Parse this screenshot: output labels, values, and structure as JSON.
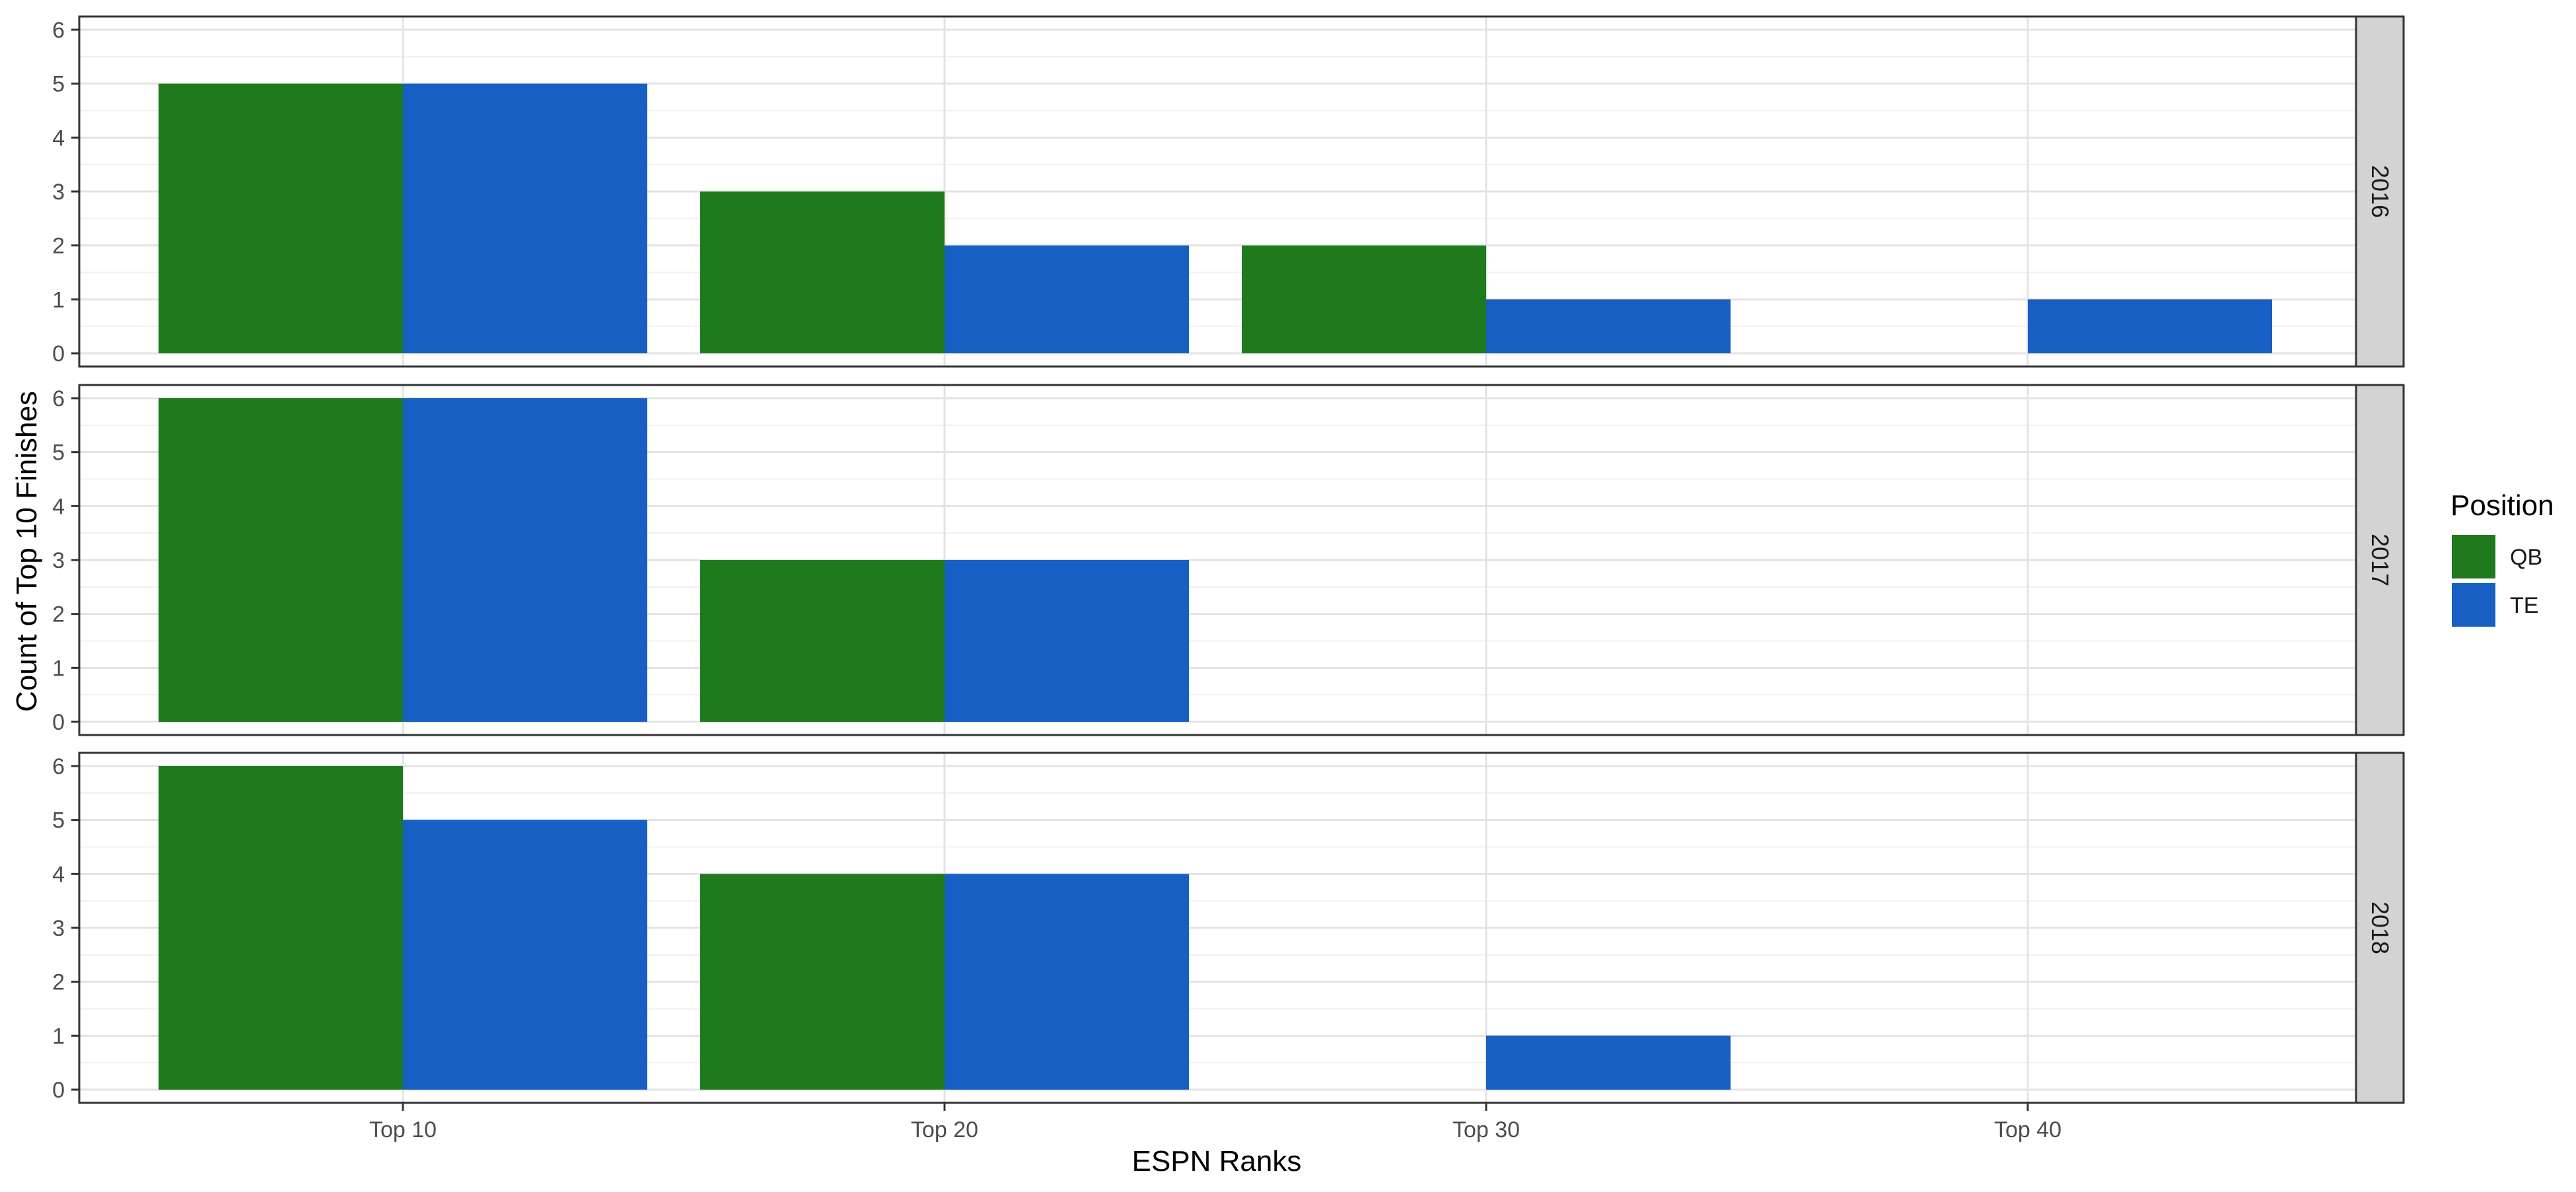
{
  "chart_data": {
    "type": "bar",
    "layout": "faceted-rows",
    "xlabel": "ESPN Ranks",
    "ylabel": "Count of Top 10 Finishes",
    "categories": [
      "Top 10",
      "Top 20",
      "Top 30",
      "Top 40"
    ],
    "ylim": [
      0,
      6
    ],
    "yticks": [
      0,
      1,
      2,
      3,
      4,
      5,
      6
    ],
    "grid": true,
    "legend": {
      "title": "Position",
      "placement": "right",
      "entries": [
        {
          "name": "QB",
          "color": "#1f7a1d"
        },
        {
          "name": "TE",
          "color": "#175fc2"
        }
      ]
    },
    "facets": [
      {
        "label": "2016",
        "series": [
          {
            "name": "QB",
            "values": [
              5,
              3,
              2,
              null
            ]
          },
          {
            "name": "TE",
            "values": [
              5,
              2,
              1,
              1
            ]
          }
        ]
      },
      {
        "label": "2017",
        "series": [
          {
            "name": "QB",
            "values": [
              6,
              3,
              null,
              null
            ]
          },
          {
            "name": "TE",
            "values": [
              6,
              3,
              null,
              null
            ]
          }
        ]
      },
      {
        "label": "2018",
        "series": [
          {
            "name": "QB",
            "values": [
              6,
              4,
              null,
              null
            ]
          },
          {
            "name": "TE",
            "values": [
              5,
              4,
              1,
              null
            ]
          }
        ]
      }
    ]
  }
}
